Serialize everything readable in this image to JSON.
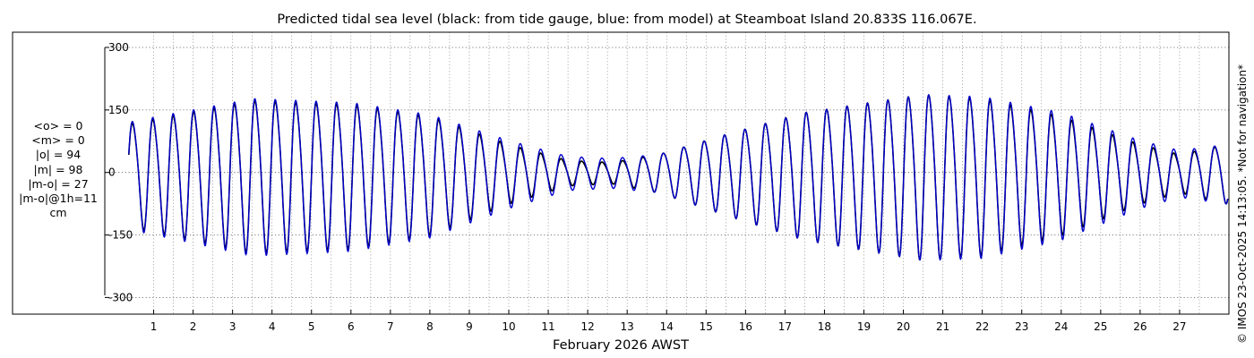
{
  "chart_data": {
    "type": "line",
    "title": "Predicted tidal sea level (black: from tide gauge, blue: from model) at Steamboat Island 20.833S 116.067E.",
    "xlabel": "February 2026 AWST",
    "ylabel": "",
    "x_ticks": [
      "1",
      "2",
      "3",
      "4",
      "5",
      "6",
      "7",
      "8",
      "9",
      "10",
      "11",
      "12",
      "13",
      "14",
      "15",
      "16",
      "17",
      "18",
      "19",
      "20",
      "21",
      "22",
      "23",
      "24",
      "25",
      "26",
      "27"
    ],
    "y_ticks": [
      "300",
      "150",
      "0",
      "-150",
      "-300"
    ],
    "y_tick_values": [
      300,
      150,
      0,
      -150,
      -300
    ],
    "xlim": [
      0.25,
      28.25
    ],
    "ylim": [
      -340,
      300
    ],
    "grid": true,
    "series": [
      {
        "color": "#000000",
        "amplitude_envelope": [
          [
            0.3,
            120
          ],
          [
            3.5,
            180
          ],
          [
            6,
            170
          ],
          [
            8,
            140
          ],
          [
            10,
            70
          ],
          [
            11.5,
            30
          ],
          [
            12.6,
            25
          ],
          [
            13.8,
            45
          ],
          [
            15.5,
            95
          ],
          [
            17.5,
            150
          ],
          [
            20.5,
            195
          ],
          [
            22,
            185
          ],
          [
            24,
            140
          ],
          [
            26,
            70
          ],
          [
            27,
            45
          ],
          [
            28.2,
            70
          ]
        ]
      },
      {
        "color": "#0000cc",
        "amplitude_envelope": [
          [
            0.3,
            125
          ],
          [
            3.5,
            185
          ],
          [
            6,
            175
          ],
          [
            8,
            145
          ],
          [
            10,
            80
          ],
          [
            11.5,
            40
          ],
          [
            12.6,
            35
          ],
          [
            13.8,
            45
          ],
          [
            15.5,
            95
          ],
          [
            17.5,
            150
          ],
          [
            20.5,
            195
          ],
          [
            22,
            190
          ],
          [
            24,
            150
          ],
          [
            26,
            80
          ],
          [
            27,
            55
          ],
          [
            28.2,
            70
          ]
        ]
      }
    ]
  },
  "stats": {
    "o_mean": "<o> = 0",
    "m_mean": "<m> = 0",
    "o_abs": "|o| = 94",
    "m_abs": "|m| = 98",
    "mo_diff": "|m-o| = 27",
    "mo_diff_1h": "|m-o|@1h=11",
    "unit": "cm"
  },
  "watermark": "© IMOS 23-Oct-2025 14:13:05. *Not for navigation*"
}
